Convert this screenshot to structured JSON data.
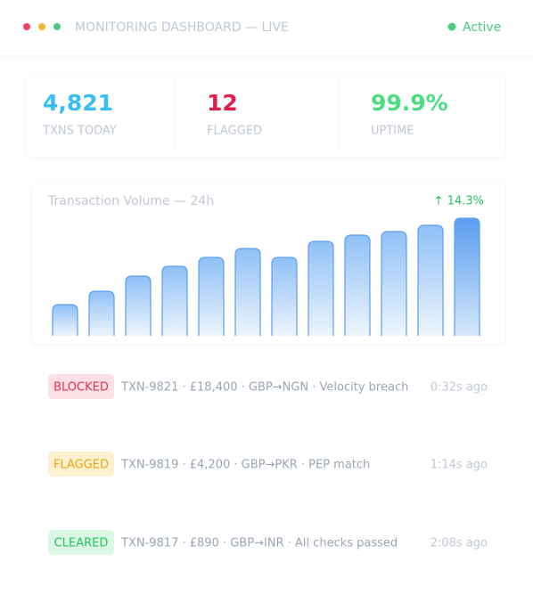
{
  "header": {
    "title": "MONITORING DASHBOARD — LIVE",
    "status": "Active"
  },
  "stats": [
    {
      "value": "4,821",
      "label": "TXNS TODAY"
    },
    {
      "value": "12",
      "label": "FLAGGED"
    },
    {
      "value": "99.9%",
      "label": "UPTIME"
    }
  ],
  "chart_data": {
    "type": "bar",
    "title": "Transaction Volume — 24h",
    "annotation": "↑ 14.3%",
    "values": [
      35,
      50,
      67,
      78,
      88,
      98,
      88,
      106,
      113,
      117,
      124,
      132
    ],
    "color": "#5b9ef0"
  },
  "alerts": [
    {
      "status": "BLOCKED",
      "detail": "TXN-9821 · £18,400 · GBP→NGN · Velocity breach",
      "time": "0:32s ago"
    },
    {
      "status": "FLAGGED",
      "detail": "TXN-9819 · £4,200 · GBP→PKR · PEP match",
      "time": "1:14s ago"
    },
    {
      "status": "CLEARED",
      "detail": "TXN-9817 · £890 · GBP→INR · All checks passed",
      "time": "2:08s ago"
    }
  ]
}
